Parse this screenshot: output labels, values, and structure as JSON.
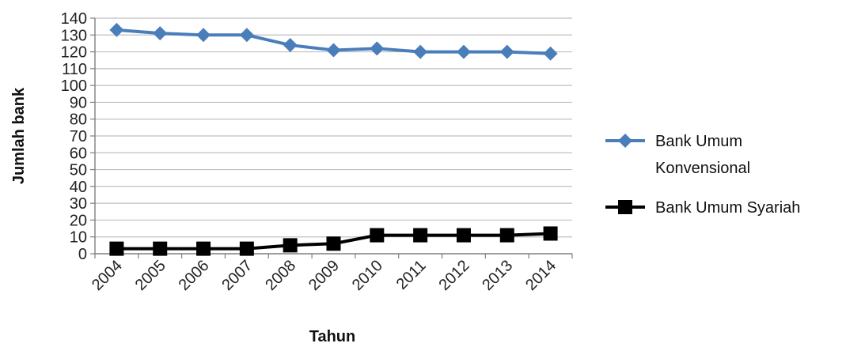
{
  "chart_data": {
    "type": "line",
    "title": "",
    "xlabel": "Tahun",
    "ylabel": "Jumlah bank",
    "ylim": [
      0,
      140
    ],
    "ytick_step": 10,
    "grid": "horizontal",
    "legend_position": "right",
    "categories": [
      "2004",
      "2005",
      "2006",
      "2007",
      "2008",
      "2009",
      "2010",
      "2011",
      "2012",
      "2013",
      "2014"
    ],
    "series": [
      {
        "name": "Bank Umum Konvensional",
        "name_lines": [
          "Bank Umum",
          "Konvensional"
        ],
        "color": "#4A7EBB",
        "marker": "diamond",
        "values": [
          133,
          131,
          130,
          130,
          124,
          121,
          122,
          120,
          120,
          120,
          119
        ]
      },
      {
        "name": "Bank Umum Syariah",
        "name_lines": [
          "Bank Umum Syariah"
        ],
        "color": "#000000",
        "marker": "square",
        "values": [
          3,
          3,
          3,
          3,
          5,
          6,
          11,
          11,
          11,
          11,
          12
        ]
      }
    ]
  }
}
